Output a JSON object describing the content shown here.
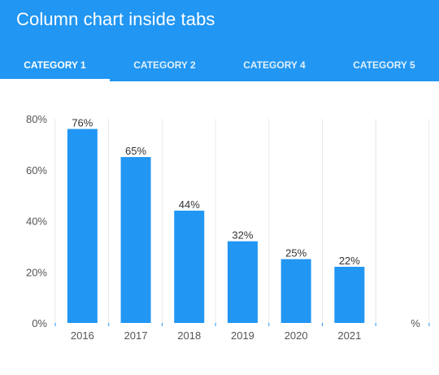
{
  "header": {
    "title": "Column chart inside tabs"
  },
  "tabs": [
    {
      "label": "CATEGORY 1",
      "active": true
    },
    {
      "label": "CATEGORY 2",
      "active": false
    },
    {
      "label": "CATEGORY 4",
      "active": false
    },
    {
      "label": "CATEGORY 5",
      "active": false
    }
  ],
  "colors": {
    "accent": "#2196f3",
    "bar": "#2196f3",
    "grid": "#e8e8e8",
    "axis_text": "#555555",
    "label_text": "#333333"
  },
  "chart_data": {
    "type": "bar",
    "categories": [
      "2016",
      "2017",
      "2018",
      "2019",
      "2020",
      "2021"
    ],
    "values": [
      76,
      65,
      44,
      32,
      25,
      22
    ],
    "data_labels": [
      "76%",
      "65%",
      "44%",
      "32%",
      "25%",
      "22%"
    ],
    "yticks": [
      "0%",
      "20%",
      "40%",
      "60%",
      "80%"
    ],
    "ytick_values": [
      0,
      20,
      40,
      60,
      80
    ],
    "ylim": [
      0,
      80
    ],
    "y_unit_label": "%",
    "grid": true
  }
}
